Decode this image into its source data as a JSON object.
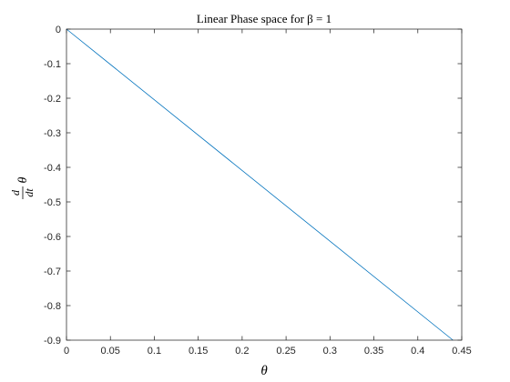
{
  "chart_data": {
    "type": "line",
    "title": "Linear Phase space for β = 1",
    "xlabel": "θ",
    "ylabel": {
      "numerator": "d",
      "denominator": "dt",
      "symbol": "θ"
    },
    "xlim": [
      0,
      0.45
    ],
    "ylim": [
      -0.9,
      0
    ],
    "xticks": [
      "0",
      "0.05",
      "0.1",
      "0.15",
      "0.2",
      "0.25",
      "0.3",
      "0.35",
      "0.4",
      "0.45"
    ],
    "yticks": [
      "0",
      "-0.1",
      "-0.2",
      "-0.3",
      "-0.4",
      "-0.5",
      "-0.6",
      "-0.7",
      "-0.8",
      "-0.9"
    ],
    "grid": false,
    "series": [
      {
        "x": [
          0,
          0.44
        ],
        "y": [
          0,
          -0.9
        ],
        "color": "#0072BD"
      }
    ]
  }
}
